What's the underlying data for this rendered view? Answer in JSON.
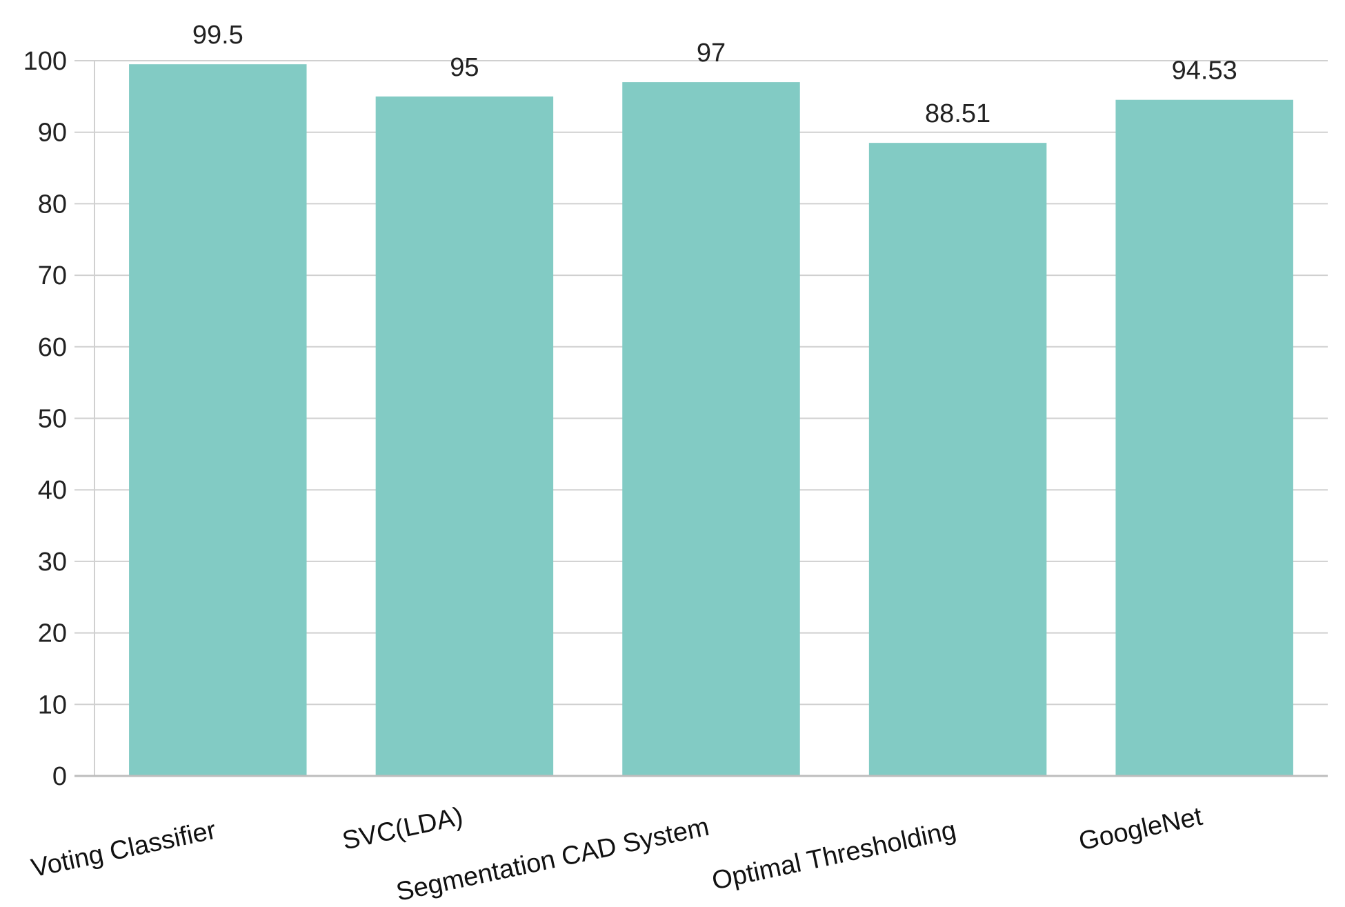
{
  "chart_data": {
    "type": "bar",
    "categories": [
      "Voting Classifier",
      "SVC(LDA)",
      "Segmentation CAD System",
      "Optimal Thresholding",
      "GoogleNet"
    ],
    "values": [
      99.5,
      95,
      97,
      88.51,
      94.53
    ],
    "value_labels": [
      "99.5",
      "95",
      "97",
      "88.51",
      "94.53"
    ],
    "title": "",
    "xlabel": "",
    "ylabel": "",
    "ylim": [
      0,
      100
    ],
    "yticks": [
      "0",
      "10",
      "20",
      "30",
      "40",
      "50",
      "60",
      "70",
      "80",
      "90",
      "100"
    ],
    "grid": true,
    "legend": "none",
    "bar_color": "#82CBC4",
    "grid_color": "#d0d0d0",
    "axis_color": "#bdbdbd"
  }
}
